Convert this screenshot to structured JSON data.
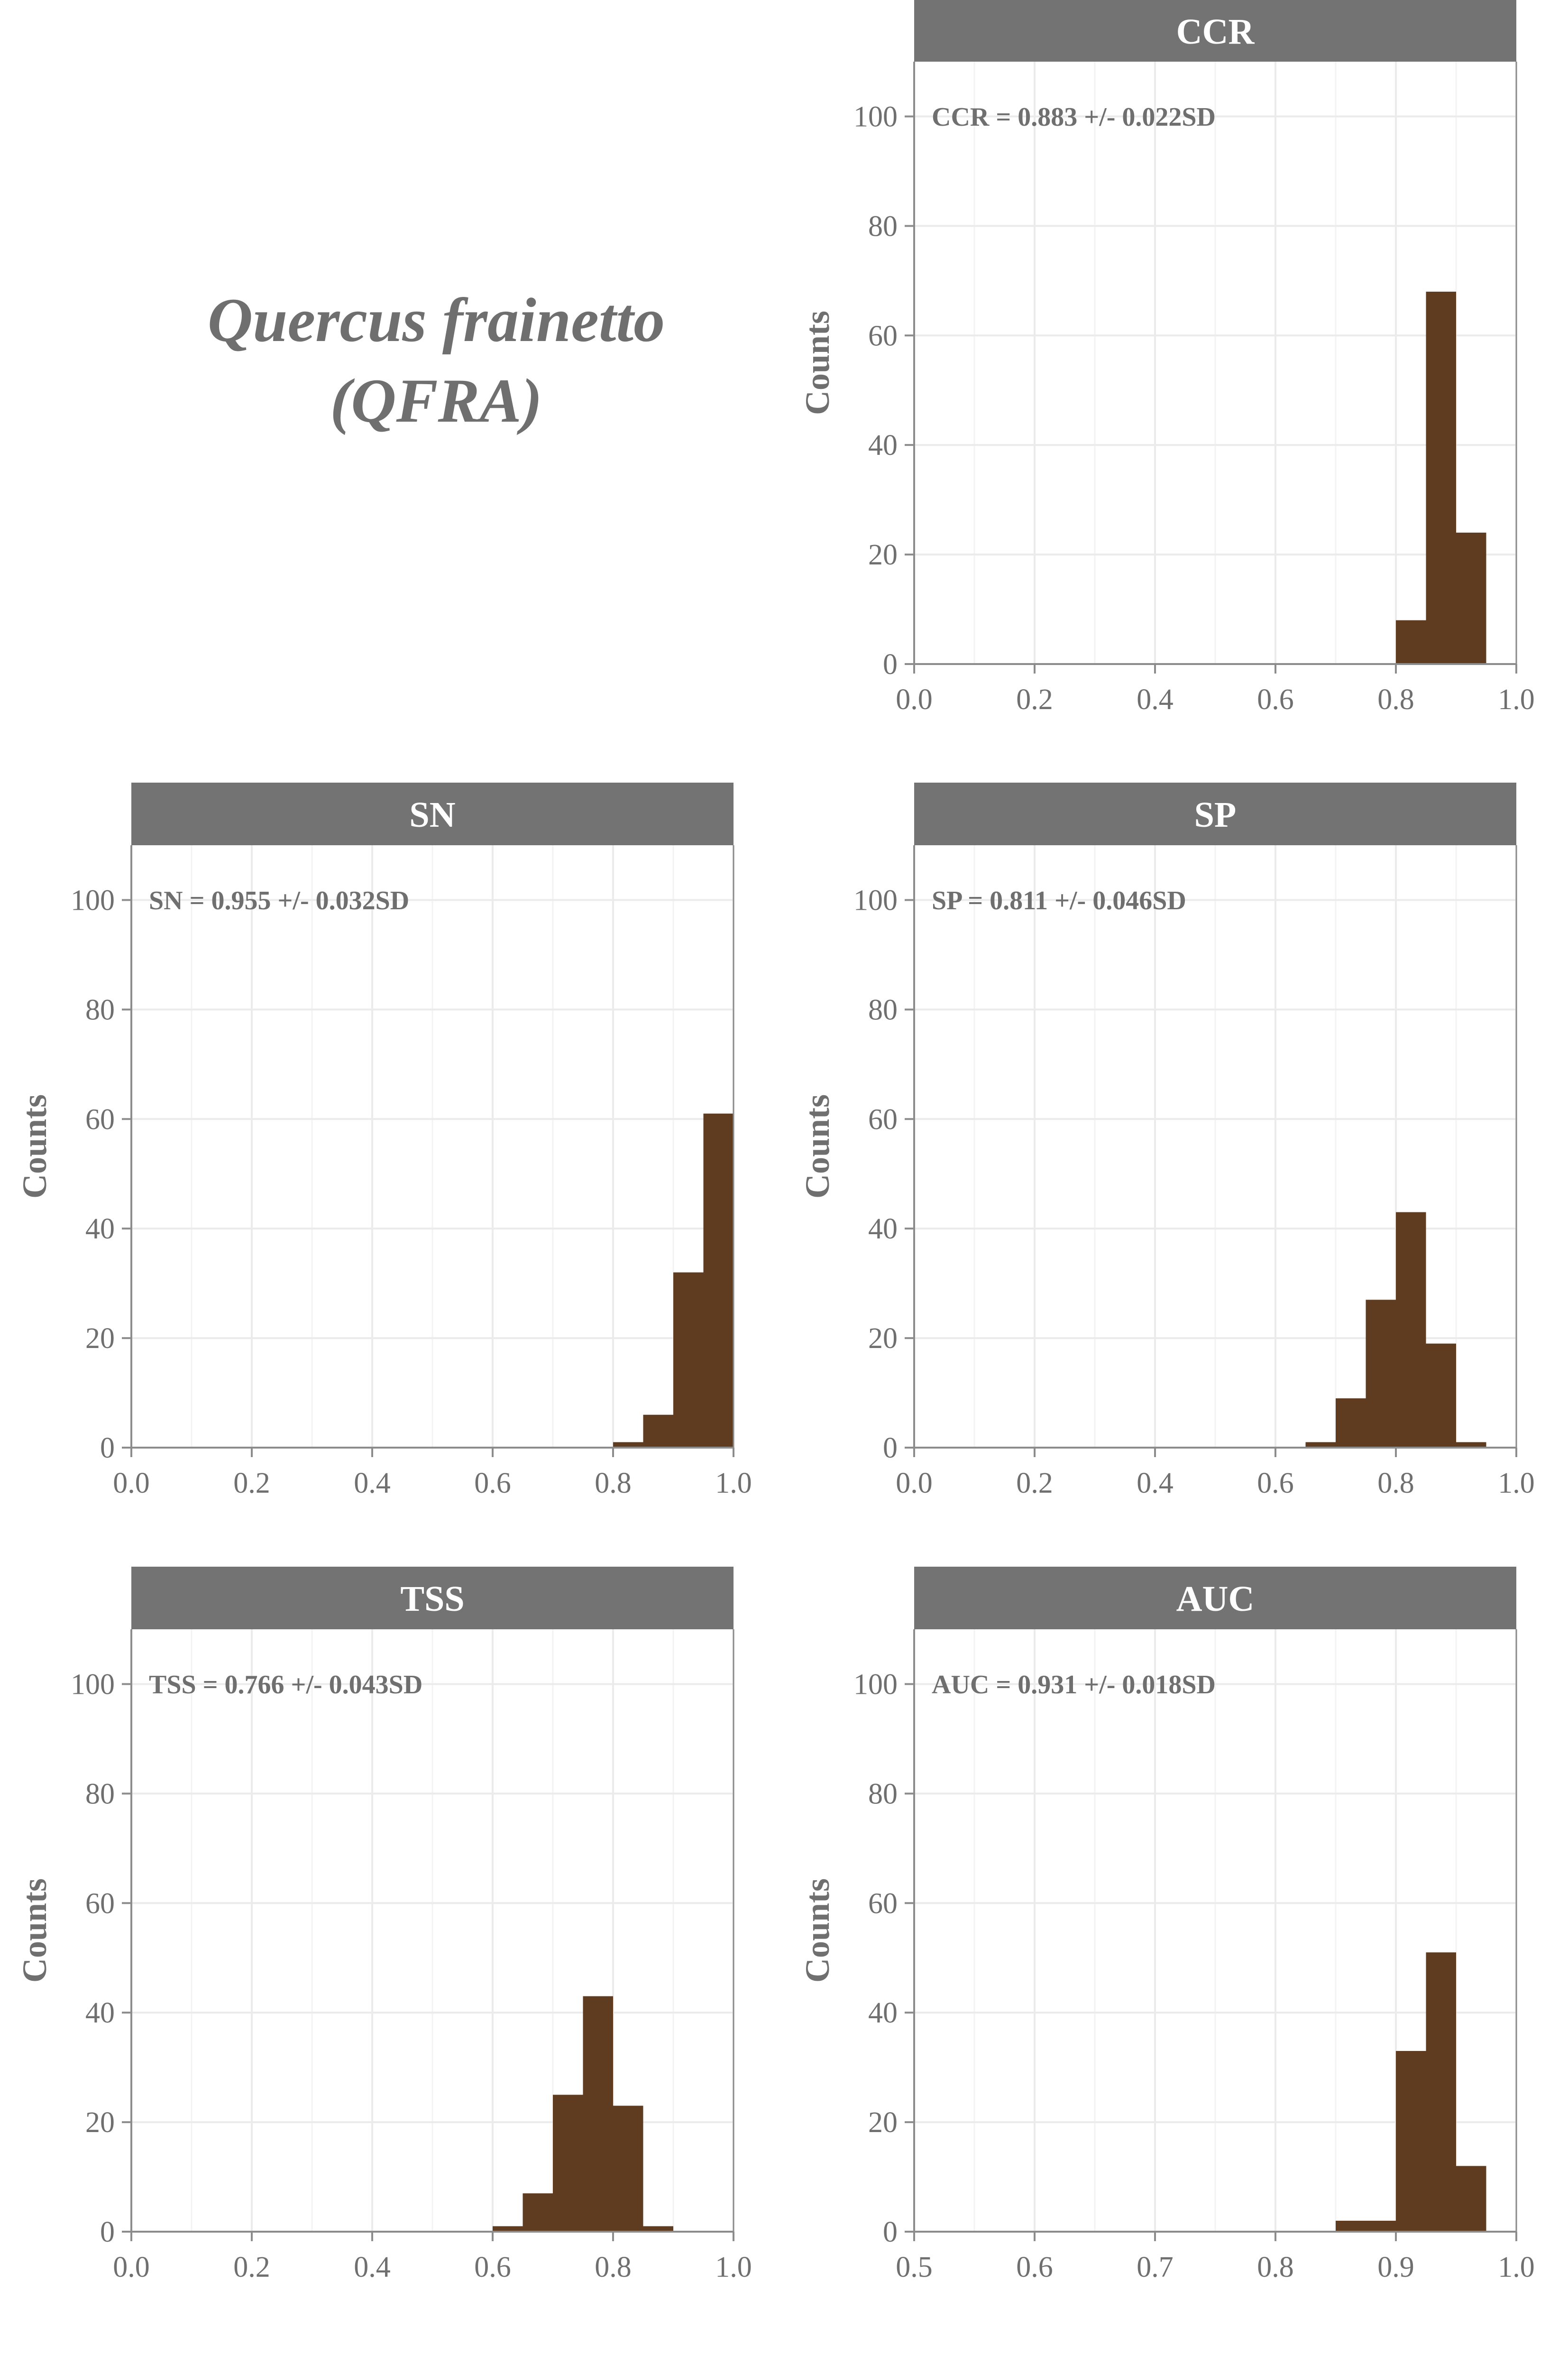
{
  "species": {
    "name": "Quercus frainetto",
    "code": "(QFRA)"
  },
  "colors": {
    "bar": "#5f3b1f",
    "strip": "#737373",
    "strip_text": "#ffffff",
    "axis_text": "#6f6f6f",
    "grid": "#ebebeb",
    "axis_line": "#8c8c8c"
  },
  "chart_data": [
    {
      "type": "bar",
      "title": "CCR",
      "annotation": "CCR = 0.883 +/- 0.022SD",
      "ylabel": "Counts",
      "xlim": [
        0.0,
        1.0
      ],
      "ylim": [
        0,
        110
      ],
      "xticks": [
        "0.0",
        "0.2",
        "0.4",
        "0.6",
        "0.8",
        "1.0"
      ],
      "xtick_values": [
        0.0,
        0.2,
        0.4,
        0.6,
        0.8,
        1.0
      ],
      "yticks": [
        "0",
        "20",
        "40",
        "60",
        "80",
        "100"
      ],
      "ytick_values": [
        0,
        20,
        40,
        60,
        80,
        100
      ],
      "bins": [
        {
          "x0": 0.8,
          "x1": 0.85,
          "count": 8
        },
        {
          "x0": 0.85,
          "x1": 0.9,
          "count": 68
        },
        {
          "x0": 0.9,
          "x1": 0.95,
          "count": 24
        }
      ]
    },
    {
      "type": "bar",
      "title": "SN",
      "annotation": "SN = 0.955 +/- 0.032SD",
      "ylabel": "Counts",
      "xlim": [
        0.0,
        1.0
      ],
      "ylim": [
        0,
        110
      ],
      "xticks": [
        "0.0",
        "0.2",
        "0.4",
        "0.6",
        "0.8",
        "1.0"
      ],
      "xtick_values": [
        0.0,
        0.2,
        0.4,
        0.6,
        0.8,
        1.0
      ],
      "yticks": [
        "0",
        "20",
        "40",
        "60",
        "80",
        "100"
      ],
      "ytick_values": [
        0,
        20,
        40,
        60,
        80,
        100
      ],
      "bins": [
        {
          "x0": 0.8,
          "x1": 0.85,
          "count": 1
        },
        {
          "x0": 0.85,
          "x1": 0.9,
          "count": 6
        },
        {
          "x0": 0.9,
          "x1": 0.95,
          "count": 32
        },
        {
          "x0": 0.95,
          "x1": 1.0,
          "count": 61
        }
      ]
    },
    {
      "type": "bar",
      "title": "SP",
      "annotation": "SP = 0.811 +/- 0.046SD",
      "ylabel": "Counts",
      "xlim": [
        0.0,
        1.0
      ],
      "ylim": [
        0,
        110
      ],
      "xticks": [
        "0.0",
        "0.2",
        "0.4",
        "0.6",
        "0.8",
        "1.0"
      ],
      "xtick_values": [
        0.0,
        0.2,
        0.4,
        0.6,
        0.8,
        1.0
      ],
      "yticks": [
        "0",
        "20",
        "40",
        "60",
        "80",
        "100"
      ],
      "ytick_values": [
        0,
        20,
        40,
        60,
        80,
        100
      ],
      "bins": [
        {
          "x0": 0.65,
          "x1": 0.7,
          "count": 1
        },
        {
          "x0": 0.7,
          "x1": 0.75,
          "count": 9
        },
        {
          "x0": 0.75,
          "x1": 0.8,
          "count": 27
        },
        {
          "x0": 0.8,
          "x1": 0.85,
          "count": 43
        },
        {
          "x0": 0.85,
          "x1": 0.9,
          "count": 19
        },
        {
          "x0": 0.9,
          "x1": 0.95,
          "count": 1
        }
      ]
    },
    {
      "type": "bar",
      "title": "TSS",
      "annotation": "TSS = 0.766 +/- 0.043SD",
      "ylabel": "Counts",
      "xlim": [
        0.0,
        1.0
      ],
      "ylim": [
        0,
        110
      ],
      "xticks": [
        "0.0",
        "0.2",
        "0.4",
        "0.6",
        "0.8",
        "1.0"
      ],
      "xtick_values": [
        0.0,
        0.2,
        0.4,
        0.6,
        0.8,
        1.0
      ],
      "yticks": [
        "0",
        "20",
        "40",
        "60",
        "80",
        "100"
      ],
      "ytick_values": [
        0,
        20,
        40,
        60,
        80,
        100
      ],
      "bins": [
        {
          "x0": 0.6,
          "x1": 0.65,
          "count": 1
        },
        {
          "x0": 0.65,
          "x1": 0.7,
          "count": 7
        },
        {
          "x0": 0.7,
          "x1": 0.75,
          "count": 25
        },
        {
          "x0": 0.75,
          "x1": 0.8,
          "count": 43
        },
        {
          "x0": 0.8,
          "x1": 0.85,
          "count": 23
        },
        {
          "x0": 0.85,
          "x1": 0.9,
          "count": 1
        }
      ]
    },
    {
      "type": "bar",
      "title": "AUC",
      "annotation": "AUC = 0.931 +/- 0.018SD",
      "ylabel": "Counts",
      "xlim": [
        0.5,
        1.0
      ],
      "ylim": [
        0,
        110
      ],
      "xticks": [
        "0.5",
        "0.6",
        "0.7",
        "0.8",
        "0.9",
        "1.0"
      ],
      "xtick_values": [
        0.5,
        0.6,
        0.7,
        0.8,
        0.9,
        1.0
      ],
      "yticks": [
        "0",
        "20",
        "40",
        "60",
        "80",
        "100"
      ],
      "ytick_values": [
        0,
        20,
        40,
        60,
        80,
        100
      ],
      "bins": [
        {
          "x0": 0.85,
          "x1": 0.875,
          "count": 2
        },
        {
          "x0": 0.875,
          "x1": 0.9,
          "count": 2
        },
        {
          "x0": 0.9,
          "x1": 0.925,
          "count": 33
        },
        {
          "x0": 0.925,
          "x1": 0.95,
          "count": 51
        },
        {
          "x0": 0.95,
          "x1": 0.975,
          "count": 12
        }
      ]
    }
  ]
}
